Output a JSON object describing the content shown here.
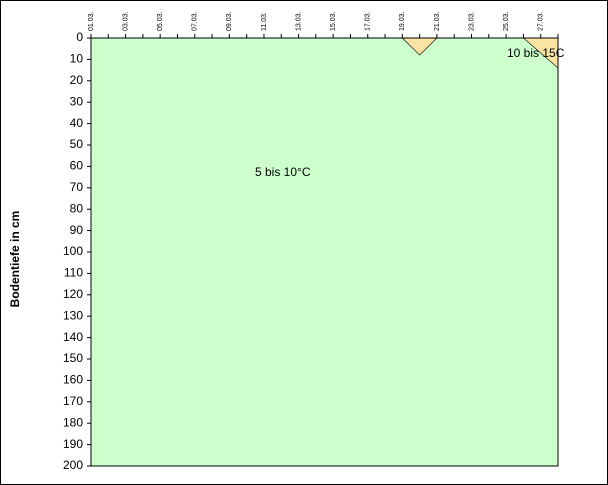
{
  "chart_data": {
    "type": "area",
    "y_label": "Bodentiefe in cm",
    "categories": [
      "01.03.",
      null,
      "03.03.",
      null,
      "05.03.",
      null,
      "07.03.",
      null,
      "09.03.",
      null,
      "11.03.",
      null,
      "13.03.",
      null,
      "15.03.",
      null,
      "17.03.",
      null,
      "19.03.",
      null,
      "21.03.",
      null,
      "23.03.",
      null,
      "25.03.",
      null,
      "27.03.",
      null
    ],
    "series": [
      {
        "name": "10 bis 15C",
        "color": "#fbe3a4",
        "values": [
          null,
          null,
          null,
          null,
          null,
          null,
          null,
          null,
          null,
          null,
          null,
          null,
          null,
          null,
          null,
          null,
          null,
          null,
          0,
          8,
          0,
          null,
          null,
          null,
          null,
          0,
          7,
          14
        ]
      }
    ],
    "background_color": "#ccffcc",
    "annotations": [
      "5 bis 10°C",
      "10 bis 15C"
    ],
    "ylim": [
      0,
      200
    ],
    "y_inverted": true,
    "yticks": [
      0,
      10,
      20,
      30,
      40,
      50,
      60,
      70,
      80,
      90,
      100,
      110,
      120,
      130,
      140,
      150,
      160,
      170,
      180,
      190,
      200
    ]
  }
}
